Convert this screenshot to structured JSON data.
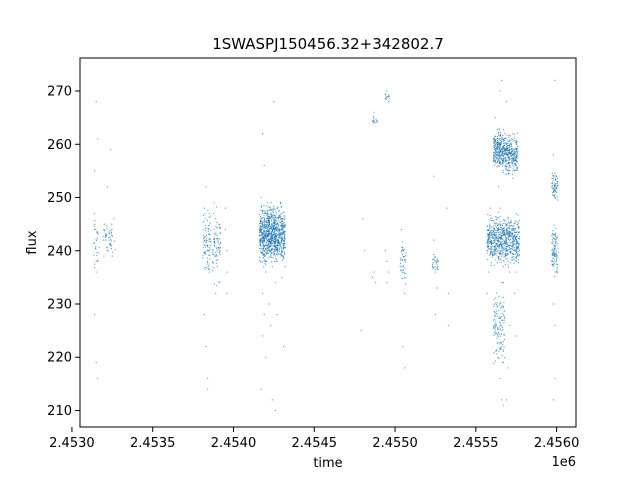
{
  "chart_data": {
    "type": "scatter",
    "title": "1SWASPJ150456.32+342802.7",
    "xlabel": "time",
    "ylabel": "flux",
    "x_offset_label": "1e6",
    "xlim": [
      2.45305,
      2.45612
    ],
    "ylim": [
      206.9,
      276.2
    ],
    "x_ticks": [
      2.453,
      2.4535,
      2.454,
      2.4545,
      2.455,
      2.4555,
      2.456
    ],
    "x_tick_labels": [
      "2.4530",
      "2.4535",
      "2.4540",
      "2.4545",
      "2.4550",
      "2.4555",
      "2.4560"
    ],
    "y_ticks": [
      210,
      220,
      230,
      240,
      250,
      260,
      270
    ],
    "y_tick_labels": [
      "210",
      "220",
      "230",
      "240",
      "250",
      "260",
      "270"
    ],
    "grid": false,
    "point_color": "#1f77b4",
    "series": [
      {
        "points": [
          [
            2.45314,
            244.0
          ],
          [
            2.45314,
            241.5
          ],
          [
            2.45315,
            238.0
          ],
          [
            2.45315,
            236.0
          ],
          [
            2.45314,
            228.0
          ],
          [
            2.45315,
            219.0
          ],
          [
            2.45316,
            216.0
          ],
          [
            2.45315,
            268.0
          ],
          [
            2.45316,
            261.0
          ],
          [
            2.45314,
            255.0
          ],
          [
            2.4532,
            245.0
          ],
          [
            2.45321,
            242.0
          ],
          [
            2.45322,
            240.0
          ],
          [
            2.45323,
            243.5
          ],
          [
            2.45324,
            241.0
          ],
          [
            2.45325,
            239.0
          ],
          [
            2.45322,
            252.0
          ],
          [
            2.45324,
            259.0
          ],
          [
            2.45326,
            246.0
          ],
          [
            2.45382,
            248.0
          ],
          [
            2.45383,
            246.0
          ],
          [
            2.45383,
            242.0
          ],
          [
            2.45384,
            240.0
          ],
          [
            2.45384,
            238.0
          ],
          [
            2.45385,
            236.0
          ],
          [
            2.45382,
            228.0
          ],
          [
            2.45383,
            222.0
          ],
          [
            2.45384,
            216.0
          ],
          [
            2.45384,
            214.0
          ],
          [
            2.45383,
            252.0
          ],
          [
            2.45388,
            249.0
          ],
          [
            2.45389,
            246.0
          ],
          [
            2.45389,
            243.0
          ],
          [
            2.4539,
            240.0
          ],
          [
            2.4539,
            237.0
          ],
          [
            2.45391,
            234.0
          ],
          [
            2.45389,
            232.0
          ],
          [
            2.45395,
            248.0
          ],
          [
            2.45395,
            244.0
          ],
          [
            2.45396,
            240.0
          ],
          [
            2.45396,
            236.0
          ],
          [
            2.45396,
            232.0
          ],
          [
            2.45417,
            250.0
          ],
          [
            2.45418,
            247.0
          ],
          [
            2.45418,
            245.0
          ],
          [
            2.45419,
            242.0
          ],
          [
            2.45419,
            240.0
          ],
          [
            2.4542,
            238.0
          ],
          [
            2.4542,
            236.0
          ],
          [
            2.45418,
            232.0
          ],
          [
            2.45419,
            228.0
          ],
          [
            2.45418,
            224.0
          ],
          [
            2.4542,
            220.0
          ],
          [
            2.45418,
            262.0
          ],
          [
            2.45419,
            256.0
          ],
          [
            2.45417,
            214.0
          ],
          [
            2.45421,
            249.0
          ],
          [
            2.45422,
            246.0
          ],
          [
            2.45422,
            243.0
          ],
          [
            2.45423,
            241.0
          ],
          [
            2.45423,
            239.0
          ],
          [
            2.45424,
            237.0
          ],
          [
            2.45424,
            244.0
          ],
          [
            2.45422,
            230.0
          ],
          [
            2.45423,
            226.0
          ],
          [
            2.45424,
            212.0
          ],
          [
            2.45425,
            248.0
          ],
          [
            2.45426,
            245.0
          ],
          [
            2.45426,
            242.0
          ],
          [
            2.45427,
            240.0
          ],
          [
            2.45427,
            238.0
          ],
          [
            2.45428,
            246.0
          ],
          [
            2.45426,
            234.0
          ],
          [
            2.45427,
            228.0
          ],
          [
            2.45425,
            268.0
          ],
          [
            2.45426,
            210.0
          ],
          [
            2.45429,
            249.0
          ],
          [
            2.4543,
            246.0
          ],
          [
            2.4543,
            243.0
          ],
          [
            2.45431,
            241.0
          ],
          [
            2.45431,
            239.0
          ],
          [
            2.45432,
            237.0
          ],
          [
            2.4543,
            235.0
          ],
          [
            2.45431,
            222.0
          ],
          [
            2.45487,
            266.0
          ],
          [
            2.45488,
            264.0
          ],
          [
            2.45487,
            236.0
          ],
          [
            2.45486,
            235.0
          ],
          [
            2.45488,
            234.0
          ],
          [
            2.45495,
            270.0
          ],
          [
            2.45496,
            268.0
          ],
          [
            2.45495,
            238.0
          ],
          [
            2.45496,
            236.0
          ],
          [
            2.45494,
            240.0
          ],
          [
            2.45495,
            234.0
          ],
          [
            2.4548,
            246.0
          ],
          [
            2.45481,
            240.0
          ],
          [
            2.45479,
            225.0
          ],
          [
            2.45504,
            244.0
          ],
          [
            2.45505,
            240.0
          ],
          [
            2.45505,
            237.0
          ],
          [
            2.45506,
            235.0
          ],
          [
            2.45506,
            232.0
          ],
          [
            2.45505,
            222.0
          ],
          [
            2.45506,
            218.0
          ],
          [
            2.45524,
            254.0
          ],
          [
            2.45525,
            238.0
          ],
          [
            2.45525,
            236.0
          ],
          [
            2.45526,
            233.0
          ],
          [
            2.45524,
            242.0
          ],
          [
            2.45525,
            228.0
          ],
          [
            2.45532,
            248.0
          ],
          [
            2.45533,
            232.0
          ],
          [
            2.45533,
            226.0
          ],
          [
            2.45562,
            265.0
          ],
          [
            2.45563,
            261.0
          ],
          [
            2.45563,
            258.0
          ],
          [
            2.45564,
            256.0
          ],
          [
            2.45564,
            252.0
          ],
          [
            2.45565,
            248.0
          ],
          [
            2.45565,
            244.0
          ],
          [
            2.45566,
            241.0
          ],
          [
            2.45566,
            239.0
          ],
          [
            2.45567,
            237.0
          ],
          [
            2.45566,
            234.0
          ],
          [
            2.45567,
            228.0
          ],
          [
            2.45566,
            222.0
          ],
          [
            2.45565,
            216.0
          ],
          [
            2.45566,
            212.0
          ],
          [
            2.45567,
            211.0
          ],
          [
            2.45565,
            270.0
          ],
          [
            2.45566,
            272.0
          ],
          [
            2.45568,
            262.0
          ],
          [
            2.45569,
            259.0
          ],
          [
            2.45569,
            257.0
          ],
          [
            2.4557,
            255.0
          ],
          [
            2.45569,
            244.0
          ],
          [
            2.4557,
            241.0
          ],
          [
            2.4557,
            238.0
          ],
          [
            2.45571,
            236.0
          ],
          [
            2.4557,
            246.0
          ],
          [
            2.45571,
            226.0
          ],
          [
            2.4557,
            218.0
          ],
          [
            2.45569,
            212.0
          ],
          [
            2.45569,
            268.0
          ],
          [
            2.45572,
            261.0
          ],
          [
            2.45573,
            258.0
          ],
          [
            2.45573,
            256.0
          ],
          [
            2.45574,
            243.0
          ],
          [
            2.45574,
            240.0
          ],
          [
            2.45575,
            238.0
          ],
          [
            2.45575,
            236.0
          ],
          [
            2.45574,
            232.0
          ],
          [
            2.45575,
            224.0
          ],
          [
            2.45559,
            248.0
          ],
          [
            2.45558,
            244.0
          ],
          [
            2.45557,
            240.0
          ],
          [
            2.45558,
            236.0
          ],
          [
            2.45557,
            232.0
          ],
          [
            2.45598,
            254.0
          ],
          [
            2.45599,
            252.0
          ],
          [
            2.45599,
            250.0
          ],
          [
            2.45598,
            243.0
          ],
          [
            2.45599,
            241.0
          ],
          [
            2.456,
            239.0
          ],
          [
            2.45599,
            236.0
          ],
          [
            2.45598,
            230.0
          ],
          [
            2.45599,
            226.0
          ],
          [
            2.45599,
            216.0
          ],
          [
            2.45598,
            212.0
          ],
          [
            2.45599,
            272.0
          ],
          [
            2.45598,
            258.0
          ]
        ]
      }
    ],
    "bands": [
      {
        "x": [
          2.45313,
          2.45317
        ],
        "y": [
          232,
          250
        ],
        "density": 25
      },
      {
        "x": [
          2.45319,
          2.45327
        ],
        "y": [
          238,
          246
        ],
        "density": 40
      },
      {
        "x": [
          2.45381,
          2.45386
        ],
        "y": [
          234,
          250
        ],
        "density": 80
      },
      {
        "x": [
          2.45387,
          2.45392
        ],
        "y": [
          232,
          250
        ],
        "density": 70
      },
      {
        "x": [
          2.45416,
          2.45421
        ],
        "y": [
          236,
          250
        ],
        "density": 260
      },
      {
        "x": [
          2.45421,
          2.45426
        ],
        "y": [
          236,
          250
        ],
        "density": 320
      },
      {
        "x": [
          2.45426,
          2.45432
        ],
        "y": [
          236,
          250
        ],
        "density": 280
      },
      {
        "x": [
          2.45494,
          2.45497
        ],
        "y": [
          268,
          270
        ],
        "density": 12
      },
      {
        "x": [
          2.45486,
          2.45489
        ],
        "y": [
          263,
          266
        ],
        "density": 12
      },
      {
        "x": [
          2.45503,
          2.45507
        ],
        "y": [
          232,
          244
        ],
        "density": 40
      },
      {
        "x": [
          2.45523,
          2.45527
        ],
        "y": [
          235,
          240
        ],
        "density": 25
      },
      {
        "x": [
          2.45561,
          2.45568
        ],
        "y": [
          254,
          264
        ],
        "density": 260
      },
      {
        "x": [
          2.45568,
          2.45576
        ],
        "y": [
          253,
          263
        ],
        "density": 240
      },
      {
        "x": [
          2.45557,
          2.45577
        ],
        "y": [
          236,
          248
        ],
        "density": 650
      },
      {
        "x": [
          2.45561,
          2.45568
        ],
        "y": [
          215,
          236
        ],
        "density": 120
      },
      {
        "x": [
          2.45597,
          2.45601
        ],
        "y": [
          248,
          256
        ],
        "density": 60
      },
      {
        "x": [
          2.45597,
          2.45601
        ],
        "y": [
          234,
          246
        ],
        "density": 90
      }
    ]
  }
}
